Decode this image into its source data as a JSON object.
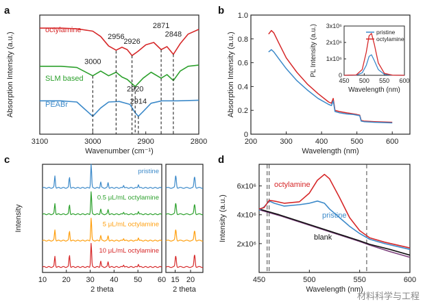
{
  "panels": {
    "a": "a",
    "b": "b",
    "c": "c",
    "d": "d"
  },
  "watermark": "材料科学与工程",
  "chart_data": [
    {
      "panel": "a",
      "type": "line",
      "xlabel": "Wavenumber (cm⁻¹)",
      "ylabel": "Absorption Intensity (a.u.)",
      "xlim": [
        3100,
        2800
      ],
      "xticks": [
        3100,
        3000,
        2900,
        2800
      ],
      "series": [
        {
          "name": "octylamine",
          "color": "#d62728",
          "x": [
            3100,
            3060,
            3030,
            3000,
            2985,
            2970,
            2956,
            2945,
            2935,
            2926,
            2915,
            2900,
            2885,
            2871,
            2860,
            2848,
            2835,
            2820,
            2800
          ],
          "y": [
            8.9,
            8.9,
            8.85,
            8.65,
            8.2,
            7.4,
            7.05,
            7.3,
            7.1,
            6.6,
            6.95,
            7.5,
            7.7,
            7.1,
            7.35,
            6.7,
            7.6,
            8.4,
            8.8
          ]
        },
        {
          "name": "SLM based",
          "color": "#2ca02c",
          "x": [
            3100,
            3060,
            3030,
            3000,
            2985,
            2970,
            2956,
            2945,
            2935,
            2920,
            2905,
            2890,
            2871,
            2860,
            2848,
            2835,
            2820,
            2800
          ],
          "y": [
            5.7,
            5.7,
            5.6,
            4.9,
            5.3,
            4.9,
            5.2,
            4.8,
            4.6,
            4.0,
            4.7,
            5.2,
            4.7,
            5.0,
            4.5,
            5.3,
            5.7,
            5.8
          ]
        },
        {
          "name": "PEABr",
          "color": "#3b89c9",
          "x": [
            3100,
            3060,
            3030,
            3015,
            3000,
            2985,
            2970,
            2950,
            2930,
            2920,
            2914,
            2905,
            2890,
            2870,
            2840,
            2800
          ],
          "y": [
            2.8,
            2.8,
            2.7,
            2.1,
            1.5,
            2.2,
            2.7,
            2.75,
            2.5,
            1.8,
            1.5,
            1.9,
            2.6,
            2.8,
            2.8,
            2.85
          ]
        }
      ],
      "annotations": [
        {
          "text": "2956",
          "x": 2956
        },
        {
          "text": "2926",
          "x": 2926
        },
        {
          "text": "2871",
          "x": 2871
        },
        {
          "text": "2848",
          "x": 2848
        },
        {
          "text": "3000",
          "x": 3000
        },
        {
          "text": "2920",
          "x": 2920
        },
        {
          "text": "2914",
          "x": 2914
        }
      ]
    },
    {
      "panel": "b",
      "type": "line",
      "xlabel": "Wavelength (nm)",
      "ylabel": "Absorption Intensity (a.u.)",
      "xlim": [
        200,
        650
      ],
      "ylim": [
        0,
        1.0
      ],
      "xticks": [
        200,
        300,
        400,
        500,
        600
      ],
      "yticks": [
        0,
        0.2,
        0.4,
        0.6,
        0.8,
        1.0
      ],
      "ytick_labels": [
        "0",
        "0.2",
        "0.4",
        "0.6",
        "0.8",
        "1.0"
      ],
      "series": [
        {
          "name": "octylamine",
          "color": "#d62728",
          "x": [
            250,
            258,
            265,
            280,
            300,
            330,
            360,
            390,
            420,
            428,
            433,
            438,
            450,
            470,
            490,
            500,
            508,
            512,
            520,
            550,
            600
          ],
          "y": [
            0.84,
            0.87,
            0.85,
            0.76,
            0.64,
            0.52,
            0.42,
            0.34,
            0.27,
            0.26,
            0.3,
            0.2,
            0.19,
            0.18,
            0.17,
            0.165,
            0.16,
            0.115,
            0.11,
            0.105,
            0.1
          ]
        },
        {
          "name": "pristine",
          "color": "#3b89c9",
          "x": [
            250,
            258,
            265,
            280,
            300,
            330,
            360,
            390,
            420,
            428,
            433,
            438,
            450,
            470,
            490,
            500,
            508,
            512,
            520,
            550,
            600
          ],
          "y": [
            0.69,
            0.71,
            0.69,
            0.63,
            0.55,
            0.45,
            0.37,
            0.3,
            0.25,
            0.24,
            0.28,
            0.19,
            0.18,
            0.17,
            0.165,
            0.16,
            0.155,
            0.11,
            0.105,
            0.1,
            0.095
          ]
        }
      ],
      "inset": {
        "xlabel": "Wavelength (nm)",
        "ylabel": "PL Intensity (a.u.)",
        "xlim": [
          450,
          600
        ],
        "ylim": [
          0,
          3000000
        ],
        "xticks": [
          450,
          500,
          550,
          600
        ],
        "ytick_labels": [
          "0",
          "1x10⁶",
          "2x10⁶",
          "3x10⁶"
        ],
        "yticks": [
          0,
          1000000,
          2000000,
          3000000
        ],
        "legend": [
          "pristine",
          "octylamine"
        ],
        "series": [
          {
            "name": "pristine",
            "color": "#3b89c9",
            "x": [
              450,
              480,
              495,
              505,
              512,
              518,
              525,
              535,
              550,
              570,
              600
            ],
            "y": [
              0,
              10000,
              150000,
              600000,
              1150000,
              1250000,
              900000,
              350000,
              60000,
              5000,
              0
            ]
          },
          {
            "name": "octylamine",
            "color": "#d62728",
            "x": [
              450,
              480,
              495,
              505,
              512,
              518,
              525,
              535,
              550,
              570,
              600
            ],
            "y": [
              0,
              20000,
              350000,
              1400000,
              2400000,
              2550000,
              1900000,
              750000,
              120000,
              10000,
              0
            ]
          }
        ]
      }
    },
    {
      "panel": "c",
      "type": "line",
      "xlabel": "2 theta",
      "ylabel": "Intensity",
      "xlim": [
        10,
        60
      ],
      "xticks": [
        10,
        20,
        30,
        40,
        50,
        60
      ],
      "xlabel_right": "2 theta",
      "xlim_right": [
        12,
        24
      ],
      "xticks_right": [
        15,
        20
      ],
      "series": [
        {
          "name": "pristine",
          "color": "#3b89c9",
          "offset": 3,
          "peaks_x": [
            15.2,
            21.3,
            30.4,
            34.4,
            37.5,
            44.0,
            50.2
          ],
          "peaks_y": [
            0.5,
            0.45,
            1.0,
            0.25,
            0.22,
            0.12,
            0.15
          ]
        },
        {
          "name": "0.5 μL/mL octylamine",
          "color": "#2ca02c",
          "offset": 2,
          "peaks_x": [
            15.2,
            21.3,
            30.4,
            34.4,
            37.5,
            44.0,
            50.2
          ],
          "peaks_y": [
            0.45,
            0.4,
            0.95,
            0.22,
            0.2,
            0.1,
            0.13
          ]
        },
        {
          "name": "5 μL/mL octylamine",
          "color": "#ff9f0e",
          "offset": 1,
          "peaks_x": [
            15.2,
            21.3,
            30.4,
            34.4,
            37.5,
            44.0,
            50.2
          ],
          "peaks_y": [
            0.45,
            0.4,
            0.95,
            0.22,
            0.2,
            0.1,
            0.13
          ]
        },
        {
          "name": "10 μL/mL octylamine",
          "color": "#d62728",
          "offset": 0,
          "peaks_x": [
            15.2,
            21.3,
            30.4,
            34.4,
            37.5,
            44.0,
            50.2
          ],
          "peaks_y": [
            0.45,
            0.5,
            1.0,
            0.25,
            0.22,
            0.1,
            0.13
          ]
        }
      ]
    },
    {
      "panel": "d",
      "type": "line",
      "xlabel": "Wavelength (nm)",
      "ylabel": "Intensity (a.u.)",
      "xlim": [
        450,
        600
      ],
      "ylim": [
        0,
        7500000
      ],
      "xticks": [
        450,
        500,
        550,
        600
      ],
      "yticks": [
        2000000,
        4000000,
        6000000
      ],
      "ytick_labels": [
        "2x10⁶",
        "4x10⁶",
        "6x10⁶"
      ],
      "vlines": [
        458,
        460,
        557
      ],
      "series": [
        {
          "name": "octylamine",
          "color": "#d62728",
          "x": [
            450,
            455,
            460,
            465,
            475,
            490,
            500,
            508,
            515,
            520,
            530,
            540,
            550,
            560,
            575,
            600
          ],
          "y": [
            4400000,
            4500000,
            5000000,
            4950000,
            4800000,
            4900000,
            5500000,
            6400000,
            6800000,
            6500000,
            5200000,
            3800000,
            2900000,
            2400000,
            2100000,
            1700000
          ]
        },
        {
          "name": "pristine",
          "color": "#3b89c9",
          "x": [
            450,
            455,
            460,
            465,
            475,
            490,
            500,
            508,
            515,
            520,
            530,
            540,
            550,
            560,
            575,
            600
          ],
          "y": [
            4300000,
            4550000,
            4950000,
            4800000,
            4600000,
            4700000,
            4800000,
            4950000,
            4800000,
            4400000,
            3800000,
            3200000,
            2700000,
            2300000,
            2000000,
            1600000
          ]
        },
        {
          "name": "blank",
          "color": "#111111",
          "x": [
            450,
            470,
            490,
            510,
            530,
            550,
            560,
            580,
            600
          ],
          "y": [
            4400000,
            4000000,
            3550000,
            3100000,
            2650000,
            2200000,
            1950000,
            1600000,
            1200000
          ]
        },
        {
          "name": "",
          "color": "#7b3f7b",
          "x": [
            450,
            470,
            490,
            510,
            530,
            550,
            560,
            580,
            600
          ],
          "y": [
            4350000,
            3950000,
            3500000,
            3050000,
            2600000,
            2150000,
            1900000,
            1450000,
            1050000
          ]
        }
      ]
    }
  ]
}
